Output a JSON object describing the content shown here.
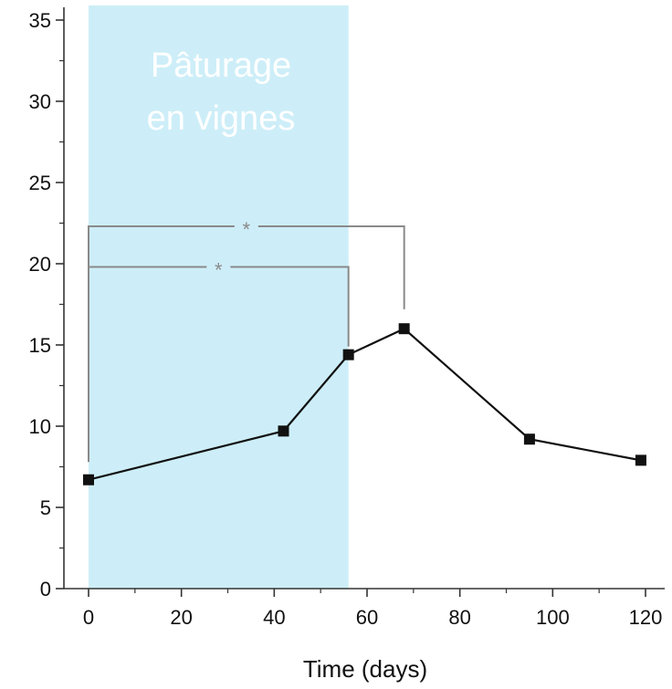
{
  "chart_data": {
    "type": "line",
    "xlabel": "Time (days)",
    "ylabel": "",
    "xlim": [
      -5,
      124
    ],
    "ylim": [
      0,
      35
    ],
    "x_ticks": [
      0,
      20,
      40,
      60,
      80,
      100,
      120
    ],
    "y_ticks": [
      0,
      5,
      10,
      15,
      20,
      25,
      30,
      35
    ],
    "series": [
      {
        "x": [
          0,
          42,
          56,
          68,
          95,
          119
        ],
        "y": [
          6.7,
          9.7,
          14.4,
          16.0,
          9.2,
          7.9
        ]
      }
    ],
    "shaded_region": {
      "x_start": 0,
      "x_end": 56,
      "label_lines": [
        "Pâturage",
        "en vignes"
      ],
      "color": "#cdeef8"
    },
    "significance_brackets": [
      {
        "x_start": 0,
        "x_end": 68,
        "level": 22.3,
        "y_end": 17.2,
        "label": "*"
      },
      {
        "x_start": 0,
        "x_end": 56,
        "level": 19.8,
        "y_end": 14.9,
        "label": "*"
      }
    ],
    "line_color": "#111111",
    "bracket_color": "#8a8a8a"
  }
}
